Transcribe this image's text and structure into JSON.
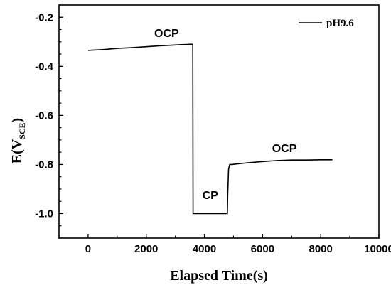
{
  "chart_data": {
    "type": "line",
    "xlabel": "Elapsed Time(s)",
    "ylabel": {
      "main": "E(V",
      "sub": "SCE",
      "close": ")"
    },
    "xlim": [
      -1000,
      10000
    ],
    "ylim": [
      -1.1,
      -0.15
    ],
    "xticks": [
      0,
      2000,
      4000,
      6000,
      8000,
      10000
    ],
    "yticks": [
      -1.0,
      -0.8,
      -0.6,
      -0.4,
      -0.2
    ],
    "ytick_labels": [
      "-1.0",
      "-0.8",
      "-0.6",
      "-0.4",
      "-0.2"
    ],
    "grid": false,
    "legend_position": "top-right",
    "series": [
      {
        "name": "pH9.6",
        "color": "#000000",
        "points": [
          [
            0,
            -0.335
          ],
          [
            500,
            -0.332
          ],
          [
            1000,
            -0.327
          ],
          [
            1500,
            -0.324
          ],
          [
            2000,
            -0.32
          ],
          [
            2500,
            -0.316
          ],
          [
            3000,
            -0.313
          ],
          [
            3500,
            -0.31
          ],
          [
            3600,
            -0.31
          ],
          [
            3610,
            -1.0
          ],
          [
            4000,
            -1.0
          ],
          [
            4500,
            -1.0
          ],
          [
            4790,
            -1.0
          ],
          [
            4800,
            -0.93
          ],
          [
            4830,
            -0.82
          ],
          [
            4870,
            -0.8
          ],
          [
            4950,
            -0.8
          ],
          [
            5100,
            -0.798
          ],
          [
            5500,
            -0.793
          ],
          [
            6000,
            -0.788
          ],
          [
            6500,
            -0.784
          ],
          [
            7000,
            -0.782
          ],
          [
            7500,
            -0.782
          ],
          [
            8000,
            -0.781
          ],
          [
            8400,
            -0.781
          ]
        ]
      }
    ],
    "annotations": [
      {
        "text": "OCP",
        "x": 2700,
        "y": -0.28
      },
      {
        "text": "CP",
        "x": 4200,
        "y": -0.94
      },
      {
        "text": "OCP",
        "x": 6750,
        "y": -0.75
      }
    ]
  }
}
